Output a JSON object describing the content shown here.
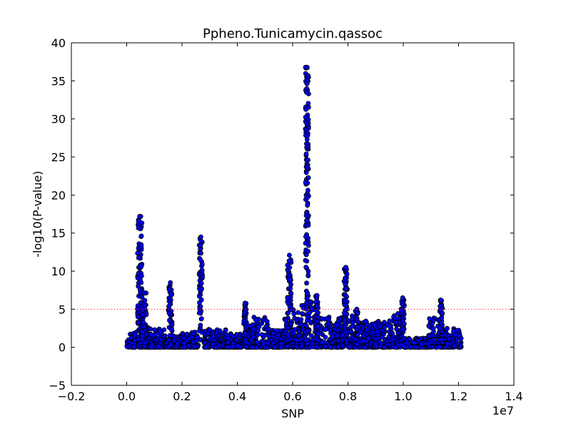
{
  "chart_data": {
    "type": "scatter",
    "title": "Ppheno.Tunicamycin.qassoc",
    "xlabel": "SNP",
    "ylabel": "-log10(P-value)",
    "x_offset_label": "1e7",
    "xlim": [
      -0.2,
      1.4
    ],
    "ylim": [
      -5,
      40
    ],
    "xticks": [
      -0.2,
      0.0,
      0.2,
      0.4,
      0.6,
      0.8,
      1.0,
      1.2,
      1.4
    ],
    "xtick_labels": [
      "−0.2",
      "0.0",
      "0.2",
      "0.4",
      "0.6",
      "0.8",
      "1.0",
      "1.2",
      "1.4"
    ],
    "yticks": [
      -5,
      0,
      5,
      10,
      15,
      20,
      25,
      30,
      35,
      40
    ],
    "ytick_labels": [
      "−5",
      "0",
      "5",
      "10",
      "15",
      "20",
      "25",
      "30",
      "35",
      "40"
    ],
    "threshold": 5,
    "grid": false,
    "marker_color": "#0000ff",
    "marker_edge_color": "#000000",
    "threshold_color": "#ff0000",
    "baseline_segments": [
      [
        0.0,
        0.1,
        0.0,
        1.0
      ],
      [
        0.1,
        0.4,
        0.0,
        2.0
      ],
      [
        0.4,
        0.8,
        0.0,
        3.0
      ],
      [
        0.8,
        1.4,
        0.0,
        2.5
      ],
      [
        1.4,
        2.0,
        0.0,
        1.5
      ],
      [
        2.0,
        2.6,
        0.0,
        2.2
      ],
      [
        2.8,
        3.6,
        0.0,
        2.5
      ],
      [
        3.6,
        4.2,
        0.0,
        1.8
      ],
      [
        4.2,
        4.5,
        0.0,
        3.5
      ],
      [
        4.5,
        5.1,
        0.0,
        4.0
      ],
      [
        5.1,
        5.7,
        0.0,
        2.5
      ],
      [
        5.7,
        6.3,
        0.0,
        5.0
      ],
      [
        6.3,
        6.8,
        0.0,
        6.0
      ],
      [
        6.8,
        7.8,
        0.0,
        4.0
      ],
      [
        7.8,
        8.2,
        0.0,
        4.5
      ],
      [
        8.2,
        8.9,
        0.0,
        3.5
      ],
      [
        8.9,
        9.6,
        0.0,
        3.5
      ],
      [
        9.6,
        10.0,
        0.0,
        4.5
      ],
      [
        10.0,
        10.9,
        0.0,
        1.2
      ],
      [
        10.9,
        11.4,
        0.0,
        4.0
      ],
      [
        11.4,
        12.1,
        0.0,
        2.5
      ]
    ],
    "peaks": [
      [
        0.47,
        0.08,
        17.2
      ],
      [
        0.62,
        0.09,
        7.2
      ],
      [
        1.58,
        0.07,
        8.5
      ],
      [
        2.68,
        0.06,
        14.5
      ],
      [
        4.28,
        0.05,
        5.8
      ],
      [
        5.88,
        0.07,
        12.1
      ],
      [
        6.52,
        0.06,
        36.8
      ],
      [
        6.88,
        0.05,
        6.8
      ],
      [
        7.92,
        0.06,
        10.5
      ],
      [
        8.32,
        0.05,
        5.0
      ],
      [
        9.98,
        0.06,
        6.5
      ],
      [
        11.36,
        0.06,
        6.2
      ]
    ]
  }
}
